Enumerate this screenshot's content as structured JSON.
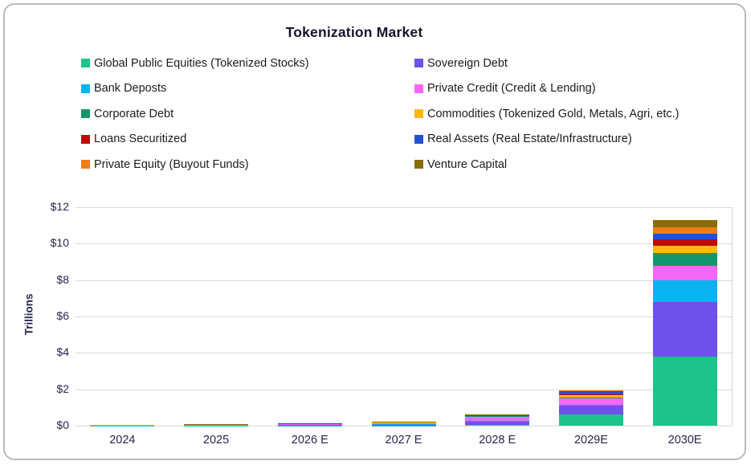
{
  "window": {
    "background": "#ffffff",
    "card_border_color": "#b9b9b9",
    "gridline_color": "#dadada",
    "axis_text_color": "#26264e",
    "legend_text_color": "#1c1c1c",
    "title_color": "#15152e"
  },
  "chart_data": {
    "type": "bar",
    "stacked": true,
    "title": "Tokenization Market",
    "ylabel": "Trillions",
    "unit": "$ Trillions",
    "categories": [
      "2024",
      "2025",
      "2026 E",
      "2027 E",
      "2028 E",
      "2029E",
      "2030E"
    ],
    "series": [
      {
        "name": "Global Public Equities (Tokenized Stocks)",
        "color": "#1ec38c",
        "values": [
          0.005,
          0.005,
          0.01,
          0.01,
          0.03,
          0.6,
          3.8
        ]
      },
      {
        "name": "Sovereign Debt",
        "color": "#6e50eb",
        "values": [
          0.005,
          0.01,
          0.04,
          0.05,
          0.2,
          0.5,
          3.0
        ]
      },
      {
        "name": "Bank Deposts",
        "color": "#0bb2f0",
        "values": [
          0.002,
          0.005,
          0.01,
          0.01,
          0.02,
          0.05,
          1.2
        ]
      },
      {
        "name": "Private Credit (Credit & Lending)",
        "color": "#f767f7",
        "values": [
          0.005,
          0.01,
          0.02,
          0.08,
          0.25,
          0.35,
          0.8
        ]
      },
      {
        "name": "Corporate Debt",
        "color": "#13966b",
        "values": [
          0.002,
          0.005,
          0.005,
          0.005,
          0.01,
          0.05,
          0.7
        ]
      },
      {
        "name": "Commodities (Tokenized Gold, Metals, Agri, etc.)",
        "color": "#fdb90a",
        "values": [
          0.01,
          0.02,
          0.02,
          0.02,
          0.03,
          0.15,
          0.4
        ]
      },
      {
        "name": "Loans Securitized",
        "color": "#be0a0a",
        "values": [
          0.002,
          0.002,
          0.005,
          0.005,
          0.01,
          0.03,
          0.35
        ]
      },
      {
        "name": "Real Assets (Real Estate/Infrastructure)",
        "color": "#2350d2",
        "values": [
          0.002,
          0.005,
          0.005,
          0.01,
          0.02,
          0.18,
          0.3
        ]
      },
      {
        "name": "Private Equity (Buyout Funds)",
        "color": "#f07d14",
        "values": [
          0.002,
          0.002,
          0.005,
          0.005,
          0.01,
          0.02,
          0.35
        ]
      },
      {
        "name": "Venture Capital",
        "color": "#8a6d0a",
        "values": [
          0.005,
          0.01,
          0.01,
          0.02,
          0.04,
          0.02,
          0.4
        ]
      }
    ],
    "ylim": [
      0,
      12
    ],
    "ytick_step": 2,
    "ytick_labels": [
      "$0",
      "$2",
      "$4",
      "$6",
      "$8",
      "$10",
      "$12"
    ],
    "grid": "horizontal",
    "legend_position": "top",
    "legend_columns": 2,
    "legend_order_note": "row-major across two columns, same order as stack bottom-to-top"
  }
}
